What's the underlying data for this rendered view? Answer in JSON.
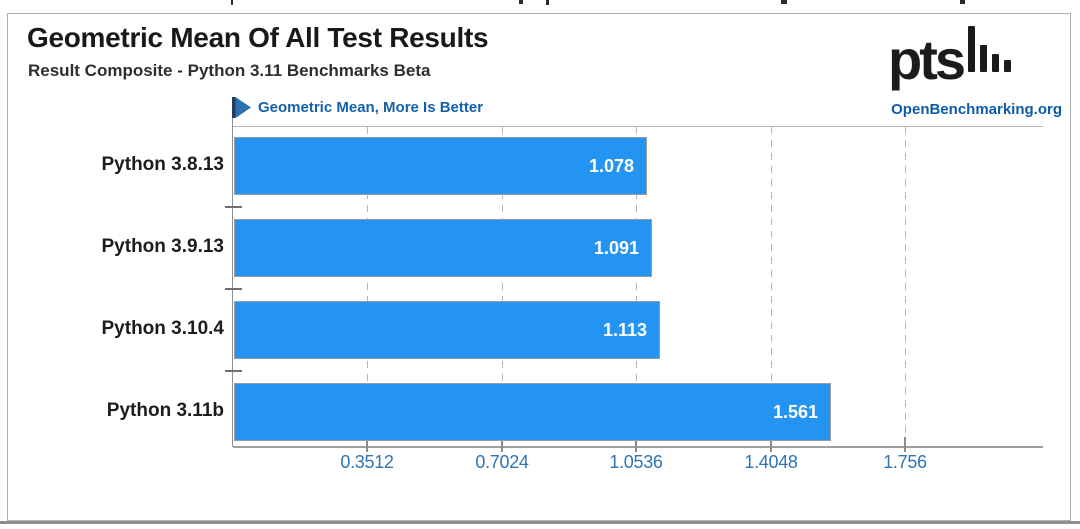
{
  "header": {
    "title": "Geometric Mean Of All Test Results",
    "subtitle": "Result Composite - Python 3.11 Benchmarks Beta",
    "logo_text": "pts",
    "site_link": "OpenBenchmarking.org"
  },
  "legend": {
    "label": "Geometric Mean, More Is Better"
  },
  "chart_data": {
    "type": "bar",
    "orientation": "horizontal",
    "higher_is_better": true,
    "title": "Geometric Mean Of All Test Results",
    "subtitle": "Result Composite - Python 3.11 Benchmarks Beta",
    "categories": [
      "Python 3.8.13",
      "Python 3.9.13",
      "Python 3.10.4",
      "Python 3.11b"
    ],
    "values": [
      1.078,
      1.091,
      1.113,
      1.561
    ],
    "value_labels": [
      "1.078",
      "1.091",
      "1.113",
      "1.561"
    ],
    "x_ticks": [
      0.3512,
      0.7024,
      1.0536,
      1.4048,
      1.756
    ],
    "x_tick_labels": [
      "0.3512",
      "0.7024",
      "1.0536",
      "1.4048",
      "1.756"
    ],
    "xlim": [
      0,
      2.117
    ],
    "grid": "vertical-dashed",
    "legend_position": "top-left",
    "colors": {
      "bar_fill": "#2394f2",
      "bar_border": "#9b9b9b",
      "value_text": "#ffffff",
      "tick_text": "#2e74b7",
      "legend_text": "#1560a8",
      "site_text": "#0d5ba8",
      "axis_line": "#9e9e9e",
      "axis_tick": "#707070",
      "gridline": "#b6b6b6",
      "plot_top_line": "#b7b7b7"
    }
  }
}
